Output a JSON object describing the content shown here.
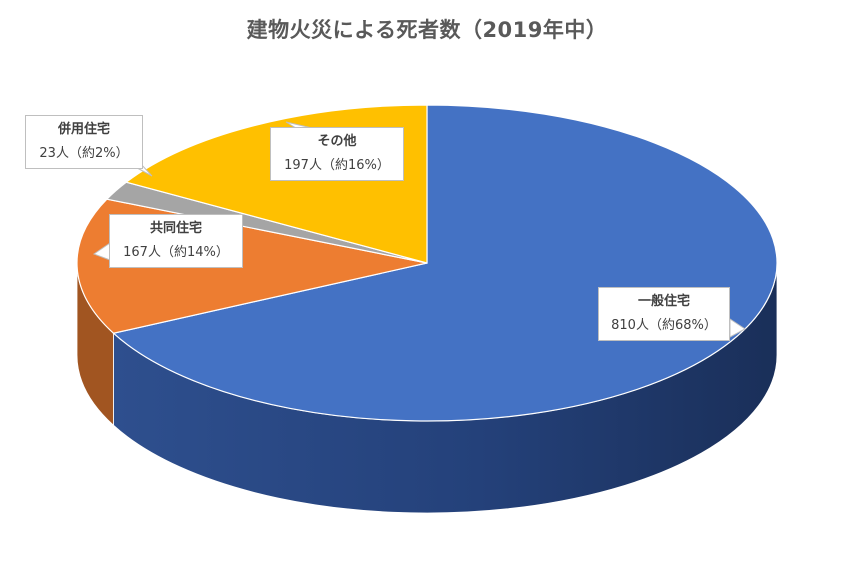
{
  "chart_data": {
    "type": "pie",
    "title": "建物火災による死者数（2019年中）",
    "categories": [
      "一般住宅",
      "共同住宅",
      "併用住宅",
      "その他"
    ],
    "values": [
      810,
      167,
      23,
      197
    ],
    "series": [
      {
        "values": [
          810,
          167,
          23,
          197
        ]
      }
    ],
    "colors": [
      "#4472c4",
      "#ed7d31",
      "#a5a5a5",
      "#ffc000"
    ],
    "labels": [
      {
        "name": "一般住宅",
        "value": "810人（約68%）"
      },
      {
        "name": "共同住宅",
        "value": "167人（約14%）"
      },
      {
        "name": "併用住宅",
        "value": "23人（約2%）"
      },
      {
        "name": "その他",
        "value": "197人（約16%）"
      }
    ],
    "style": "3d"
  }
}
